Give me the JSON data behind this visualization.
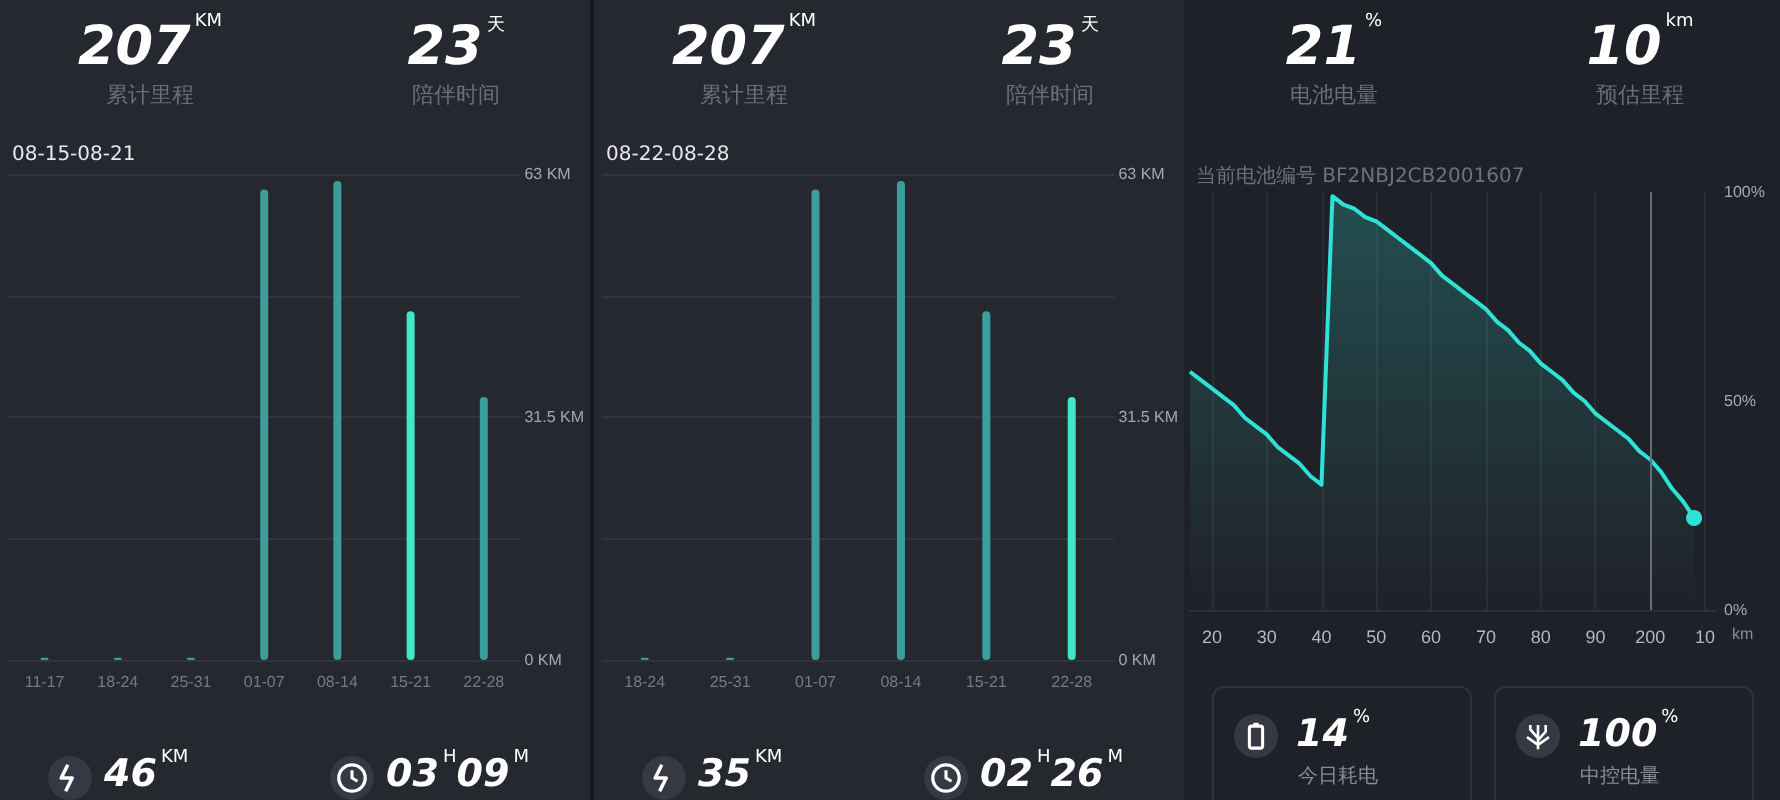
{
  "chart_data": [
    {
      "type": "bar",
      "title": "08-15-08-21",
      "categories": [
        "11-17",
        "18-24",
        "25-31",
        "01-07",
        "08-14",
        "15-21",
        "22-28"
      ],
      "values": [
        0.3,
        0.3,
        0.3,
        61,
        62.1,
        45.2,
        34.1
      ],
      "colors": [
        "#3a9f9a",
        "#3a9f9a",
        "#3a9f9a",
        "#3a9f9a",
        "#3a9f9a",
        "#3ee8c8",
        "#3a9f9a"
      ],
      "ylim": [
        0,
        63
      ],
      "yticks": [
        {
          "value": 0,
          "label": "0 KM"
        },
        {
          "value": 15.75,
          "label": null
        },
        {
          "value": 31.5,
          "label": "31.5 KM"
        },
        {
          "value": 47.25,
          "label": null
        },
        {
          "value": 63,
          "label": "63 KM"
        }
      ],
      "grid": "y",
      "annotations": [
        "207$^{KM}$",
        "累计里程",
        "23$^{天}$",
        "陪伴时间",
        "46$^{KM}$",
        "03$^{H}$09$^{M}$"
      ]
    },
    {
      "type": "bar",
      "title": "08-22-08-28",
      "categories": [
        "18-24",
        "25-31",
        "01-07",
        "08-14",
        "15-21",
        "22-28"
      ],
      "values": [
        0.3,
        0.3,
        61,
        62.1,
        45.2,
        34.1
      ],
      "colors": [
        "#3a9f9a",
        "#3a9f9a",
        "#3a9f9a",
        "#3a9f9a",
        "#3a9f9a",
        "#3ee8c8"
      ],
      "ylim": [
        0,
        63
      ],
      "yticks": [
        {
          "value": 0,
          "label": "0 KM"
        },
        {
          "value": 15.75,
          "label": null
        },
        {
          "value": 31.5,
          "label": "31.5 KM"
        },
        {
          "value": 47.25,
          "label": null
        },
        {
          "value": 63,
          "label": "63 KM"
        }
      ],
      "grid": "y",
      "annotations": [
        "207$^{KM}$",
        "累计里程",
        "23$^{天}$",
        "陪伴时间",
        "35$^{KM}$",
        "02$^{H}$26$^{M}$"
      ]
    },
    {
      "type": "area",
      "title": "当前电池编号 BF2NBJ2CB2001607",
      "xlabel": "km",
      "categories": [
        null,
        null,
        "20",
        null,
        null,
        null,
        null,
        "30",
        null,
        null,
        null,
        null,
        "40",
        null,
        null,
        null,
        null,
        "50",
        null,
        null,
        null,
        null,
        "60",
        null,
        null,
        null,
        null,
        "70",
        null,
        null,
        null,
        null,
        "80",
        null,
        null,
        null,
        null,
        "90",
        null,
        null,
        null,
        null,
        "200",
        null,
        null,
        null,
        null,
        "10",
        null
      ],
      "series": [
        {
          "color": "#2ee3d6",
          "values": [
            57,
            55,
            53,
            51,
            49,
            46,
            44,
            42,
            39,
            37,
            35,
            32,
            30,
            99,
            97,
            96,
            94,
            93,
            91,
            89,
            87,
            85,
            83,
            80,
            78,
            76,
            74,
            72,
            69,
            67,
            64,
            62,
            59,
            57,
            55,
            52,
            50,
            47,
            45,
            43,
            41,
            38,
            36,
            33,
            29,
            26,
            22,
            null,
            null
          ]
        }
      ],
      "ylim": [
        0,
        100
      ],
      "yticks": [
        {
          "value": 0,
          "label": "0%"
        },
        {
          "value": 50,
          "label": "50%"
        },
        {
          "value": 100,
          "label": "100%"
        }
      ],
      "grid": "x",
      "ref_lines": [
        {
          "axis": "x",
          "value": "200",
          "color": "#6a6d76"
        }
      ],
      "annotations": [
        "21$^{%}$",
        "电池电量",
        "10$^{km}$",
        "预估里程",
        "14$^{%}$",
        "今日耗电",
        "100$^{%}$",
        "中控电量"
      ]
    }
  ]
}
